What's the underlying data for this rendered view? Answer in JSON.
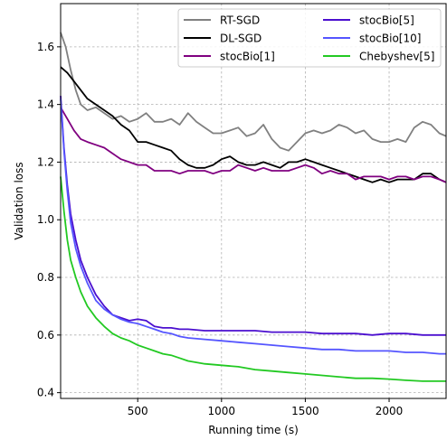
{
  "chart_data": {
    "type": "line",
    "xlabel": "Running time (s)",
    "ylabel": "Validation loss",
    "xlim": [
      40,
      2340
    ],
    "ylim": [
      0.38,
      1.75
    ],
    "xticks": [
      500,
      1000,
      1500,
      2000
    ],
    "xtick_labels": [
      "500",
      "1000",
      "1500",
      "2000"
    ],
    "yticks": [
      0.4,
      0.6,
      0.8,
      1.0,
      1.2,
      1.4,
      1.6
    ],
    "ytick_labels": [
      "0.4",
      "0.6",
      "0.8",
      "1.0",
      "1.2",
      "1.4",
      "1.6"
    ],
    "grid": true,
    "legend_position": "top-right",
    "legend_columns": 2,
    "series": [
      {
        "name": "RT-SGD",
        "color": "#808080",
        "points": [
          [
            40,
            1.65
          ],
          [
            70,
            1.6
          ],
          [
            100,
            1.52
          ],
          [
            130,
            1.45
          ],
          [
            160,
            1.4
          ],
          [
            200,
            1.38
          ],
          [
            250,
            1.39
          ],
          [
            300,
            1.37
          ],
          [
            350,
            1.35
          ],
          [
            400,
            1.36
          ],
          [
            450,
            1.34
          ],
          [
            500,
            1.35
          ],
          [
            550,
            1.37
          ],
          [
            600,
            1.34
          ],
          [
            650,
            1.34
          ],
          [
            700,
            1.35
          ],
          [
            750,
            1.33
          ],
          [
            800,
            1.37
          ],
          [
            850,
            1.34
          ],
          [
            900,
            1.32
          ],
          [
            950,
            1.3
          ],
          [
            1000,
            1.3
          ],
          [
            1050,
            1.31
          ],
          [
            1100,
            1.32
          ],
          [
            1150,
            1.29
          ],
          [
            1200,
            1.3
          ],
          [
            1250,
            1.33
          ],
          [
            1300,
            1.28
          ],
          [
            1350,
            1.25
          ],
          [
            1400,
            1.24
          ],
          [
            1450,
            1.27
          ],
          [
            1500,
            1.3
          ],
          [
            1550,
            1.31
          ],
          [
            1600,
            1.3
          ],
          [
            1650,
            1.31
          ],
          [
            1700,
            1.33
          ],
          [
            1750,
            1.32
          ],
          [
            1800,
            1.3
          ],
          [
            1850,
            1.31
          ],
          [
            1900,
            1.28
          ],
          [
            1950,
            1.27
          ],
          [
            2000,
            1.27
          ],
          [
            2050,
            1.28
          ],
          [
            2100,
            1.27
          ],
          [
            2150,
            1.32
          ],
          [
            2200,
            1.34
          ],
          [
            2250,
            1.33
          ],
          [
            2300,
            1.3
          ],
          [
            2340,
            1.29
          ]
        ]
      },
      {
        "name": "DL-SGD",
        "color": "#000000",
        "points": [
          [
            40,
            1.53
          ],
          [
            80,
            1.51
          ],
          [
            120,
            1.48
          ],
          [
            160,
            1.45
          ],
          [
            200,
            1.42
          ],
          [
            250,
            1.4
          ],
          [
            300,
            1.38
          ],
          [
            350,
            1.36
          ],
          [
            400,
            1.33
          ],
          [
            450,
            1.31
          ],
          [
            500,
            1.27
          ],
          [
            550,
            1.27
          ],
          [
            600,
            1.26
          ],
          [
            650,
            1.25
          ],
          [
            700,
            1.24
          ],
          [
            750,
            1.21
          ],
          [
            800,
            1.19
          ],
          [
            850,
            1.18
          ],
          [
            900,
            1.18
          ],
          [
            950,
            1.19
          ],
          [
            1000,
            1.21
          ],
          [
            1050,
            1.22
          ],
          [
            1100,
            1.2
          ],
          [
            1150,
            1.19
          ],
          [
            1200,
            1.19
          ],
          [
            1250,
            1.2
          ],
          [
            1300,
            1.19
          ],
          [
            1350,
            1.18
          ],
          [
            1400,
            1.2
          ],
          [
            1450,
            1.2
          ],
          [
            1500,
            1.21
          ],
          [
            1550,
            1.2
          ],
          [
            1600,
            1.19
          ],
          [
            1650,
            1.18
          ],
          [
            1700,
            1.17
          ],
          [
            1750,
            1.16
          ],
          [
            1800,
            1.15
          ],
          [
            1850,
            1.14
          ],
          [
            1900,
            1.13
          ],
          [
            1950,
            1.14
          ],
          [
            2000,
            1.13
          ],
          [
            2050,
            1.14
          ],
          [
            2100,
            1.14
          ],
          [
            2150,
            1.14
          ],
          [
            2200,
            1.16
          ],
          [
            2250,
            1.16
          ],
          [
            2300,
            1.14
          ],
          [
            2340,
            1.13
          ]
        ]
      },
      {
        "name": "stocBio[1]",
        "color": "#800080",
        "points": [
          [
            40,
            1.39
          ],
          [
            80,
            1.35
          ],
          [
            120,
            1.31
          ],
          [
            160,
            1.28
          ],
          [
            200,
            1.27
          ],
          [
            250,
            1.26
          ],
          [
            300,
            1.25
          ],
          [
            350,
            1.23
          ],
          [
            400,
            1.21
          ],
          [
            450,
            1.2
          ],
          [
            500,
            1.19
          ],
          [
            550,
            1.19
          ],
          [
            600,
            1.17
          ],
          [
            650,
            1.17
          ],
          [
            700,
            1.17
          ],
          [
            750,
            1.16
          ],
          [
            800,
            1.17
          ],
          [
            850,
            1.17
          ],
          [
            900,
            1.17
          ],
          [
            950,
            1.16
          ],
          [
            1000,
            1.17
          ],
          [
            1050,
            1.17
          ],
          [
            1100,
            1.19
          ],
          [
            1150,
            1.18
          ],
          [
            1200,
            1.17
          ],
          [
            1250,
            1.18
          ],
          [
            1300,
            1.17
          ],
          [
            1350,
            1.17
          ],
          [
            1400,
            1.17
          ],
          [
            1450,
            1.18
          ],
          [
            1500,
            1.19
          ],
          [
            1550,
            1.18
          ],
          [
            1600,
            1.16
          ],
          [
            1650,
            1.17
          ],
          [
            1700,
            1.16
          ],
          [
            1750,
            1.16
          ],
          [
            1800,
            1.14
          ],
          [
            1850,
            1.15
          ],
          [
            1900,
            1.15
          ],
          [
            1950,
            1.15
          ],
          [
            2000,
            1.14
          ],
          [
            2050,
            1.15
          ],
          [
            2100,
            1.15
          ],
          [
            2150,
            1.14
          ],
          [
            2200,
            1.15
          ],
          [
            2250,
            1.15
          ],
          [
            2300,
            1.14
          ],
          [
            2340,
            1.13
          ]
        ]
      },
      {
        "name": "stocBio[5]",
        "color": "#4b0fcf",
        "points": [
          [
            40,
            1.43
          ],
          [
            60,
            1.25
          ],
          [
            80,
            1.12
          ],
          [
            100,
            1.02
          ],
          [
            130,
            0.93
          ],
          [
            160,
            0.86
          ],
          [
            200,
            0.8
          ],
          [
            250,
            0.74
          ],
          [
            300,
            0.7
          ],
          [
            350,
            0.67
          ],
          [
            400,
            0.66
          ],
          [
            450,
            0.65
          ],
          [
            500,
            0.655
          ],
          [
            550,
            0.65
          ],
          [
            600,
            0.63
          ],
          [
            650,
            0.625
          ],
          [
            700,
            0.625
          ],
          [
            750,
            0.62
          ],
          [
            800,
            0.62
          ],
          [
            900,
            0.615
          ],
          [
            1000,
            0.615
          ],
          [
            1100,
            0.615
          ],
          [
            1200,
            0.615
          ],
          [
            1300,
            0.61
          ],
          [
            1400,
            0.61
          ],
          [
            1500,
            0.61
          ],
          [
            1600,
            0.605
          ],
          [
            1700,
            0.605
          ],
          [
            1800,
            0.605
          ],
          [
            1900,
            0.6
          ],
          [
            2000,
            0.605
          ],
          [
            2100,
            0.605
          ],
          [
            2200,
            0.6
          ],
          [
            2300,
            0.6
          ],
          [
            2340,
            0.6
          ]
        ]
      },
      {
        "name": "stocBio[10]",
        "color": "#5555ff",
        "points": [
          [
            40,
            1.42
          ],
          [
            60,
            1.24
          ],
          [
            80,
            1.1
          ],
          [
            100,
            0.99
          ],
          [
            130,
            0.9
          ],
          [
            160,
            0.84
          ],
          [
            200,
            0.78
          ],
          [
            250,
            0.72
          ],
          [
            300,
            0.69
          ],
          [
            350,
            0.67
          ],
          [
            400,
            0.655
          ],
          [
            450,
            0.645
          ],
          [
            500,
            0.64
          ],
          [
            550,
            0.63
          ],
          [
            600,
            0.62
          ],
          [
            650,
            0.61
          ],
          [
            700,
            0.605
          ],
          [
            750,
            0.595
          ],
          [
            800,
            0.59
          ],
          [
            900,
            0.585
          ],
          [
            1000,
            0.58
          ],
          [
            1100,
            0.575
          ],
          [
            1200,
            0.57
          ],
          [
            1300,
            0.565
          ],
          [
            1400,
            0.56
          ],
          [
            1500,
            0.555
          ],
          [
            1600,
            0.55
          ],
          [
            1700,
            0.55
          ],
          [
            1800,
            0.545
          ],
          [
            1900,
            0.545
          ],
          [
            2000,
            0.545
          ],
          [
            2100,
            0.54
          ],
          [
            2200,
            0.54
          ],
          [
            2300,
            0.535
          ],
          [
            2340,
            0.535
          ]
        ]
      },
      {
        "name": "Chebyshev[5]",
        "color": "#22c922",
        "points": [
          [
            40,
            1.15
          ],
          [
            60,
            1.03
          ],
          [
            80,
            0.93
          ],
          [
            100,
            0.86
          ],
          [
            130,
            0.8
          ],
          [
            160,
            0.75
          ],
          [
            200,
            0.7
          ],
          [
            250,
            0.66
          ],
          [
            300,
            0.63
          ],
          [
            350,
            0.605
          ],
          [
            400,
            0.59
          ],
          [
            450,
            0.58
          ],
          [
            500,
            0.565
          ],
          [
            550,
            0.555
          ],
          [
            600,
            0.545
          ],
          [
            650,
            0.535
          ],
          [
            700,
            0.53
          ],
          [
            750,
            0.52
          ],
          [
            800,
            0.51
          ],
          [
            900,
            0.5
          ],
          [
            1000,
            0.495
          ],
          [
            1100,
            0.49
          ],
          [
            1200,
            0.48
          ],
          [
            1300,
            0.475
          ],
          [
            1400,
            0.47
          ],
          [
            1500,
            0.465
          ],
          [
            1600,
            0.46
          ],
          [
            1700,
            0.455
          ],
          [
            1800,
            0.45
          ],
          [
            1900,
            0.45
          ],
          [
            2000,
            0.447
          ],
          [
            2100,
            0.443
          ],
          [
            2200,
            0.44
          ],
          [
            2300,
            0.44
          ],
          [
            2340,
            0.44
          ]
        ]
      }
    ]
  }
}
